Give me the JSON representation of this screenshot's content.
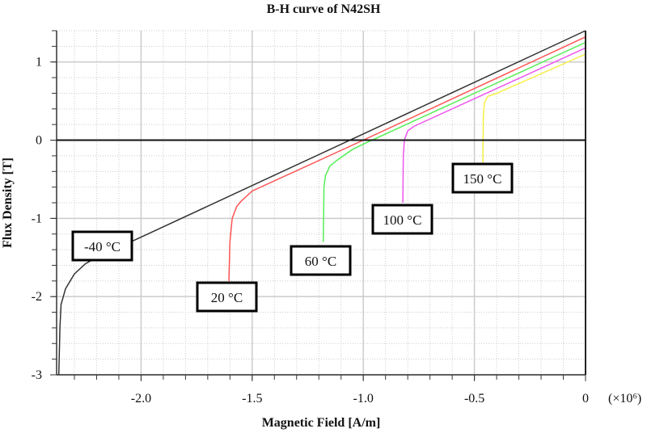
{
  "chart_data": {
    "type": "line",
    "title": "B-H curve of N42SH",
    "xlabel": "Magnetic Field [A/m]",
    "ylabel": "Flux Density [T]",
    "x_multiplier": "(×10⁶)",
    "xlim": [
      -2.38,
      0
    ],
    "ylim": [
      -3,
      1.4
    ],
    "grid": true,
    "x_ticks": [
      {
        "v": -2.0,
        "label": "-2.0"
      },
      {
        "v": -1.5,
        "label": "-1.5"
      },
      {
        "v": -1.0,
        "label": "-1.0"
      },
      {
        "v": -0.5,
        "label": "-0.5"
      },
      {
        "v": 0,
        "label": "0"
      }
    ],
    "y_ticks": [
      {
        "v": 1,
        "label": "1"
      },
      {
        "v": 0,
        "label": "0"
      },
      {
        "v": -1,
        "label": "-1"
      },
      {
        "v": -2,
        "label": "-2"
      },
      {
        "v": -3,
        "label": "-3"
      }
    ],
    "series": [
      {
        "name": "-40 °C",
        "color": "#333333",
        "points": [
          [
            -2.37,
            -3.0
          ],
          [
            -2.365,
            -2.4
          ],
          [
            -2.36,
            -2.1
          ],
          [
            -2.34,
            -1.9
          ],
          [
            -2.3,
            -1.71
          ],
          [
            -2.25,
            -1.58
          ],
          [
            -2.2,
            -1.5
          ],
          [
            -2.0,
            -1.24
          ],
          [
            -1.5,
            -0.58
          ],
          [
            -1.0,
            0.08
          ],
          [
            -0.5,
            0.74
          ],
          [
            0,
            1.4
          ]
        ]
      },
      {
        "name": "20 °C",
        "color": "#ff5555",
        "points": [
          [
            -1.605,
            -1.8
          ],
          [
            -1.6,
            -1.3
          ],
          [
            -1.59,
            -1.0
          ],
          [
            -1.57,
            -0.85
          ],
          [
            -1.55,
            -0.78
          ],
          [
            -1.5,
            -0.65
          ],
          [
            -1.0,
            0.0
          ],
          [
            -0.5,
            0.66
          ],
          [
            0,
            1.32
          ]
        ]
      },
      {
        "name": "60 °C",
        "color": "#55ee55",
        "points": [
          [
            -1.18,
            -1.3
          ],
          [
            -1.177,
            -0.6
          ],
          [
            -1.17,
            -0.45
          ],
          [
            -1.15,
            -0.33
          ],
          [
            -1.12,
            -0.26
          ],
          [
            -1.05,
            -0.12
          ],
          [
            -1.0,
            -0.05
          ],
          [
            -0.5,
            0.6
          ],
          [
            0,
            1.25
          ]
        ]
      },
      {
        "name": "100 °C",
        "color": "#ee55ee",
        "points": [
          [
            -0.822,
            -0.8
          ],
          [
            -0.82,
            -0.2
          ],
          [
            -0.815,
            0.0
          ],
          [
            -0.8,
            0.12
          ],
          [
            -0.77,
            0.18
          ],
          [
            -0.5,
            0.53
          ],
          [
            0,
            1.18
          ]
        ]
      },
      {
        "name": "150 °C",
        "color": "#f5f044",
        "points": [
          [
            -0.462,
            -0.3
          ],
          [
            -0.46,
            0.3
          ],
          [
            -0.455,
            0.48
          ],
          [
            -0.44,
            0.56
          ],
          [
            -0.4,
            0.6
          ],
          [
            0,
            1.1
          ]
        ]
      }
    ]
  }
}
